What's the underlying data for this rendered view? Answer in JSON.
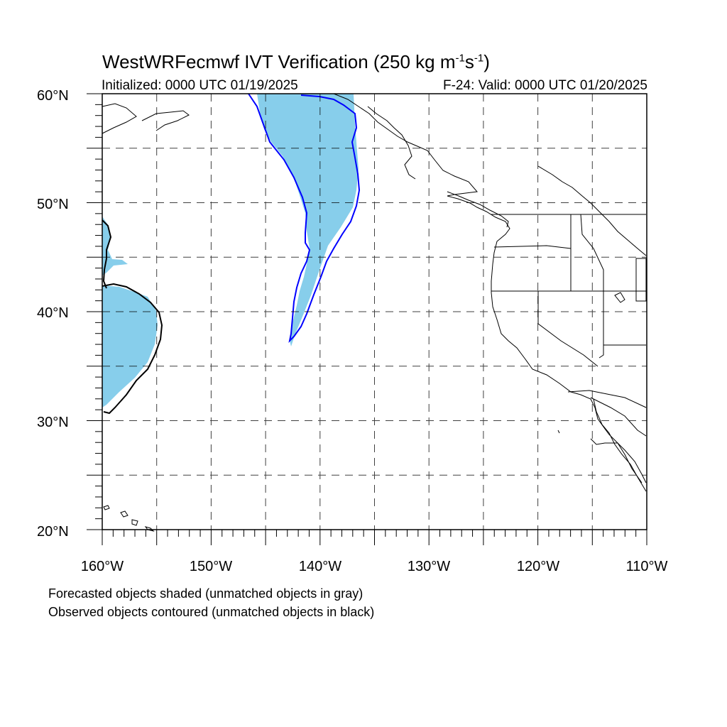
{
  "title": {
    "main": "WestWRFecmwf IVT Verification",
    "units_prefix": "(250 kg m",
    "units_exp1": "-1",
    "units_mid": "s",
    "units_exp2": "-1",
    "units_suffix": ")"
  },
  "subtitle": {
    "initialized": "Initialized: 0000 UTC 01/19/2025",
    "valid": "F-24: Valid: 0000 UTC 01/20/2025"
  },
  "map": {
    "lon_range": [
      -160,
      -110
    ],
    "lat_range": [
      20,
      60
    ],
    "grid": "dashed, every 5 degrees",
    "lat_labels": [
      "20°N",
      "30°N",
      "40°N",
      "50°N",
      "60°N"
    ],
    "lon_labels": [
      "160°W",
      "150°W",
      "140°W",
      "130°W",
      "120°W",
      "110°W"
    ],
    "colors": {
      "forecast_fill": "#87ceeb",
      "observed_matched": "#0000ff",
      "observed_unmatched": "#000000",
      "coastline": "#000000"
    }
  },
  "notes": {
    "line1": "Forecasted objects shaded (unmatched objects in gray)",
    "line2": "Observed objects contoured (unmatched objects in black)"
  }
}
